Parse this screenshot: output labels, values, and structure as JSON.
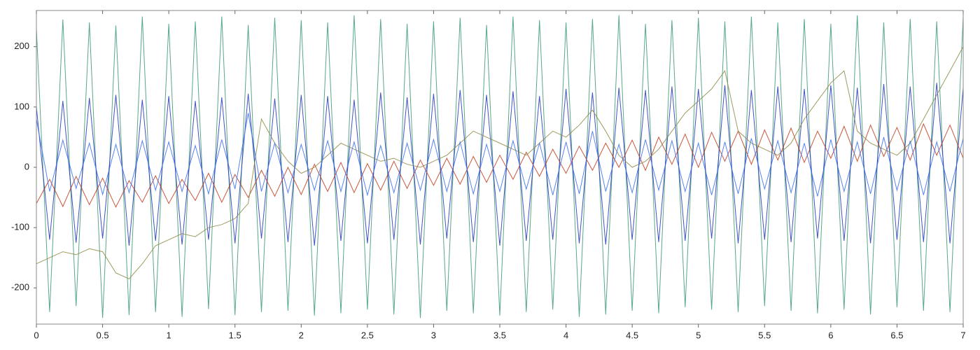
{
  "chart_data": {
    "type": "line",
    "x": [
      0,
      0.1,
      0.2,
      0.3,
      0.4,
      0.5,
      0.6,
      0.7,
      0.8,
      0.9,
      1,
      1.1,
      1.2,
      1.3,
      1.4,
      1.5,
      1.6,
      1.7,
      1.8,
      1.9,
      2,
      2.1,
      2.2,
      2.3,
      2.4,
      2.5,
      2.6,
      2.7,
      2.8,
      2.9,
      3,
      3.1,
      3.2,
      3.3,
      3.4,
      3.5,
      3.6,
      3.7,
      3.8,
      3.9,
      4,
      4.1,
      4.2,
      4.3,
      4.4,
      4.5,
      4.6,
      4.7,
      4.8,
      4.9,
      5,
      5.1,
      5.2,
      5.3,
      5.4,
      5.5,
      5.6,
      5.7,
      5.8,
      5.9,
      6,
      6.1,
      6.2,
      6.3,
      6.4,
      6.5,
      6.6,
      6.7,
      6.8,
      6.9,
      7
    ],
    "series": [
      {
        "color": "#3a9a72",
        "values": [
          230,
          -240,
          245,
          -230,
          240,
          -250,
          235,
          -245,
          250,
          -240,
          238,
          -248,
          242,
          -235,
          250,
          -245,
          236,
          -240,
          248,
          -238,
          244,
          -246,
          240,
          -242,
          252,
          -236,
          246,
          -244,
          238,
          -250,
          242,
          -238,
          248,
          -242,
          236,
          -246,
          250,
          -240,
          244,
          -236,
          240,
          -248,
          246,
          -244,
          252,
          -238,
          238,
          -242,
          244,
          -232,
          248,
          -236,
          242,
          -240,
          250,
          -230,
          240,
          -238,
          246,
          -242,
          238,
          -236,
          252,
          -244,
          240,
          -232,
          246,
          -238,
          242,
          -240,
          250
        ]
      },
      {
        "color": "#2233bb",
        "values": [
          100,
          -120,
          110,
          -125,
          115,
          -118,
          120,
          -130,
          112,
          -122,
          118,
          -128,
          110,
          -120,
          116,
          -126,
          122,
          -118,
          114,
          -124,
          120,
          -130,
          118,
          -122,
          112,
          -126,
          124,
          -120,
          116,
          -128,
          122,
          -118,
          128,
          -124,
          120,
          -130,
          126,
          -122,
          118,
          -120,
          130,
          -126,
          124,
          -128,
          132,
          -120,
          128,
          -124,
          134,
          -122,
          130,
          -118,
          136,
          -126,
          128,
          -120,
          134,
          -124,
          130,
          -118,
          136,
          -122,
          132,
          -126,
          138,
          -120,
          134,
          -124,
          140,
          -126,
          132
        ]
      },
      {
        "color": "#c03a1c",
        "values": [
          -60,
          -20,
          -65,
          -15,
          -62,
          -18,
          -66,
          -22,
          -58,
          -14,
          -60,
          -20,
          -55,
          -10,
          -58,
          -12,
          -50,
          -5,
          -48,
          0,
          -45,
          5,
          -40,
          8,
          -42,
          6,
          -38,
          10,
          -35,
          12,
          -30,
          15,
          -28,
          18,
          -25,
          20,
          -20,
          25,
          -15,
          30,
          -10,
          35,
          -5,
          40,
          0,
          45,
          -5,
          50,
          5,
          55,
          0,
          58,
          10,
          60,
          5,
          62,
          12,
          65,
          8,
          60,
          15,
          68,
          10,
          70,
          18,
          66,
          12,
          72,
          20,
          70,
          15
        ]
      },
      {
        "color": "#8c8a44",
        "values": [
          -160,
          -150,
          -140,
          -145,
          -135,
          -140,
          -175,
          -185,
          -160,
          -130,
          -120,
          -110,
          -115,
          -100,
          -95,
          -85,
          -60,
          80,
          40,
          10,
          -10,
          0,
          20,
          40,
          30,
          20,
          10,
          15,
          5,
          0,
          10,
          20,
          40,
          60,
          50,
          40,
          30,
          20,
          40,
          60,
          50,
          70,
          95,
          60,
          20,
          0,
          10,
          30,
          60,
          90,
          110,
          130,
          160,
          60,
          40,
          30,
          20,
          40,
          80,
          110,
          140,
          160,
          60,
          40,
          30,
          20,
          40,
          80,
          120,
          160,
          200
        ]
      },
      {
        "color": "#3a6ef0",
        "values": [
          80,
          -40,
          45,
          -35,
          40,
          -45,
          38,
          -42,
          44,
          -38,
          42,
          -40,
          36,
          -44,
          46,
          -36,
          90,
          -40,
          40,
          -42,
          38,
          -38,
          44,
          -40,
          42,
          -46,
          36,
          -42,
          40,
          -38,
          46,
          -40,
          42,
          -44,
          38,
          -40,
          44,
          -36,
          40,
          -46,
          42,
          -44,
          60,
          -40,
          38,
          -42,
          46,
          -38,
          44,
          -40,
          40,
          -46,
          42,
          -44,
          48,
          -36,
          44,
          -42,
          40,
          -48,
          46,
          -40,
          42,
          -44,
          50,
          -38,
          44,
          -46,
          42,
          -40,
          48
        ]
      }
    ],
    "xlim": [
      0,
      7
    ],
    "xticks": [
      0,
      0.5,
      1,
      1.5,
      2,
      2.5,
      3,
      3.5,
      4,
      4.5,
      5,
      5.5,
      6,
      6.5,
      7
    ],
    "ylim": [
      -260,
      260
    ],
    "yticks": [
      -200,
      -100,
      0,
      100,
      200
    ],
    "grid": false
  }
}
